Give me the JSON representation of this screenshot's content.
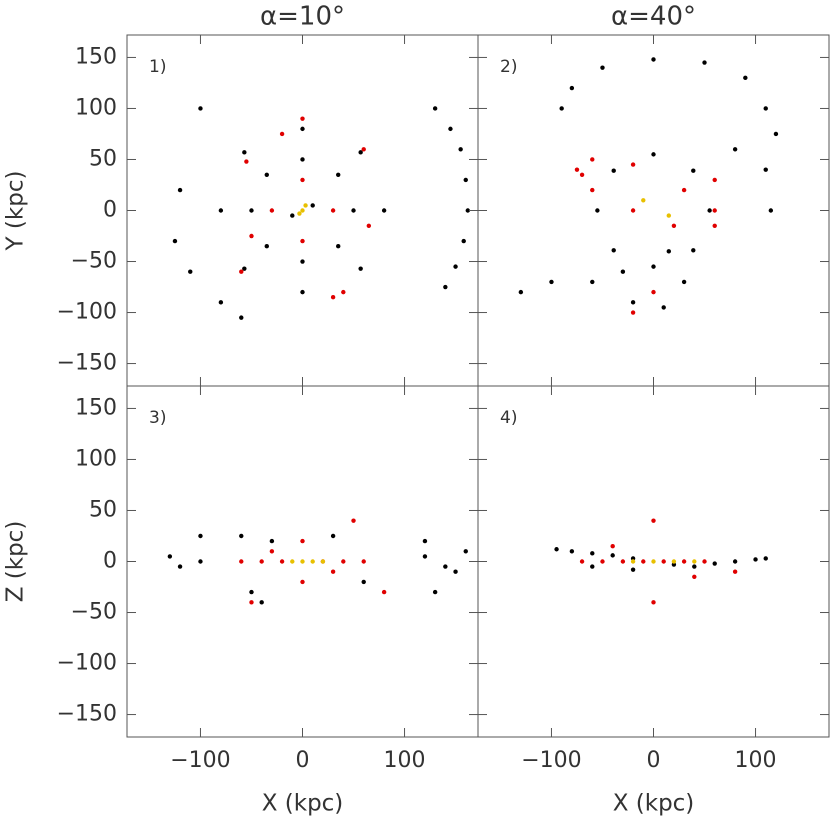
{
  "chart_data": [
    {
      "type": "scatter",
      "title": "α=10°",
      "panel_label": "1)",
      "ylabel": "Y (kpc)",
      "xlim": [
        -172,
        172
      ],
      "ylim": [
        -172,
        172
      ],
      "yticks": [
        {
          "value": -150,
          "label": "−150"
        },
        {
          "value": -100,
          "label": "−100"
        },
        {
          "value": -50,
          "label": "−50"
        },
        0,
        50,
        100,
        150
      ],
      "series": [
        {
          "color": "#000000",
          "x": [
            130,
            145,
            155,
            160,
            162,
            158,
            150,
            140,
            0,
            57,
            80,
            57,
            0,
            -57,
            -80,
            -57,
            0,
            35,
            50,
            35,
            0,
            -35,
            -50,
            -35,
            -60,
            -80,
            -110,
            -125,
            -120,
            -100,
            10,
            -10
          ],
          "values": [
            100,
            80,
            60,
            30,
            0,
            -30,
            -55,
            -75,
            80,
            57,
            0,
            -57,
            -80,
            -57,
            0,
            57,
            50,
            35,
            0,
            -35,
            -50,
            -35,
            0,
            35,
            -105,
            -90,
            -60,
            -30,
            20,
            100,
            5,
            -5
          ]
        },
        {
          "color": "#e00000",
          "x": [
            -55,
            -50,
            -30,
            30,
            65,
            30,
            40,
            0,
            -20,
            60,
            -60,
            0,
            0
          ],
          "values": [
            48,
            -25,
            0,
            0,
            -15,
            -85,
            -80,
            90,
            75,
            60,
            -60,
            -30,
            30
          ]
        },
        {
          "color": "#e8c000",
          "x": [
            0,
            3,
            -3
          ],
          "values": [
            0,
            5,
            -3
          ]
        }
      ]
    },
    {
      "type": "scatter",
      "title": "α=40°",
      "panel_label": "2)",
      "xlim": [
        -172,
        172
      ],
      "ylim": [
        -172,
        172
      ],
      "series": [
        {
          "color": "#000000",
          "x": [
            -80,
            -50,
            0,
            50,
            90,
            110,
            120,
            -90,
            0,
            39,
            55,
            39,
            0,
            -39,
            -55,
            -39,
            -30,
            -20,
            10,
            30,
            15,
            80,
            110,
            115,
            -130,
            -100,
            -60
          ],
          "values": [
            120,
            140,
            148,
            145,
            130,
            100,
            75,
            100,
            55,
            39,
            0,
            -39,
            -55,
            -39,
            0,
            39,
            -60,
            -90,
            -95,
            -70,
            -40,
            60,
            40,
            0,
            -80,
            -70,
            -70
          ]
        },
        {
          "color": "#e00000",
          "x": [
            -75,
            -60,
            -20,
            30,
            60,
            60,
            20,
            -20,
            -60,
            -70,
            60,
            0,
            -20
          ],
          "values": [
            40,
            50,
            45,
            20,
            0,
            -15,
            -15,
            0,
            20,
            35,
            30,
            -80,
            -100
          ]
        },
        {
          "color": "#e8c000",
          "x": [
            -10,
            15
          ],
          "values": [
            10,
            -5
          ]
        }
      ]
    },
    {
      "type": "scatter",
      "panel_label": "3)",
      "ylabel": "Z (kpc)",
      "xlabel": "X (kpc)",
      "xlim": [
        -172,
        172
      ],
      "ylim": [
        -172,
        172
      ],
      "xticks": [
        {
          "value": -100,
          "label": "−100"
        },
        0,
        100
      ],
      "yticks": [
        {
          "value": -150,
          "label": "−150"
        },
        {
          "value": -100,
          "label": "−100"
        },
        {
          "value": -50,
          "label": "−50"
        },
        0,
        50,
        100,
        150
      ],
      "series": [
        {
          "color": "#000000",
          "x": [
            -100,
            -120,
            -130,
            120,
            140,
            160,
            150,
            -50,
            -30,
            30,
            -60,
            60,
            130,
            120,
            -100,
            -40
          ],
          "values": [
            0,
            -5,
            5,
            5,
            -5,
            10,
            -10,
            -30,
            20,
            25,
            25,
            -20,
            -30,
            20,
            25,
            -40
          ]
        },
        {
          "color": "#e00000",
          "x": [
            -60,
            -40,
            -20,
            20,
            40,
            60,
            -30,
            30,
            0,
            0,
            50,
            -50,
            80
          ],
          "values": [
            0,
            0,
            0,
            0,
            0,
            0,
            10,
            -10,
            20,
            -20,
            40,
            -40,
            -30
          ]
        },
        {
          "color": "#e8c000",
          "x": [
            -10,
            0,
            10,
            20
          ],
          "values": [
            0,
            0,
            0,
            0
          ]
        }
      ]
    },
    {
      "type": "scatter",
      "panel_label": "4)",
      "xlabel": "X (kpc)",
      "xlim": [
        -172,
        172
      ],
      "ylim": [
        -172,
        172
      ],
      "xticks": [
        {
          "value": -100,
          "label": "−100"
        },
        0,
        100
      ],
      "series": [
        {
          "color": "#000000",
          "x": [
            -95,
            -80,
            -60,
            -40,
            -20,
            20,
            40,
            60,
            80,
            100,
            110,
            -60,
            -20
          ],
          "values": [
            12,
            10,
            8,
            6,
            3,
            -3,
            -5,
            -2,
            0,
            2,
            3,
            -5,
            -8
          ]
        },
        {
          "color": "#e00000",
          "x": [
            -70,
            -50,
            -30,
            -10,
            10,
            30,
            50,
            -40,
            40,
            0,
            0,
            80
          ],
          "values": [
            0,
            0,
            0,
            0,
            0,
            0,
            0,
            15,
            -15,
            40,
            -40,
            -10
          ]
        },
        {
          "color": "#e8c000",
          "x": [
            -20,
            0,
            20,
            40
          ],
          "values": [
            0,
            0,
            0,
            0
          ]
        }
      ]
    }
  ]
}
